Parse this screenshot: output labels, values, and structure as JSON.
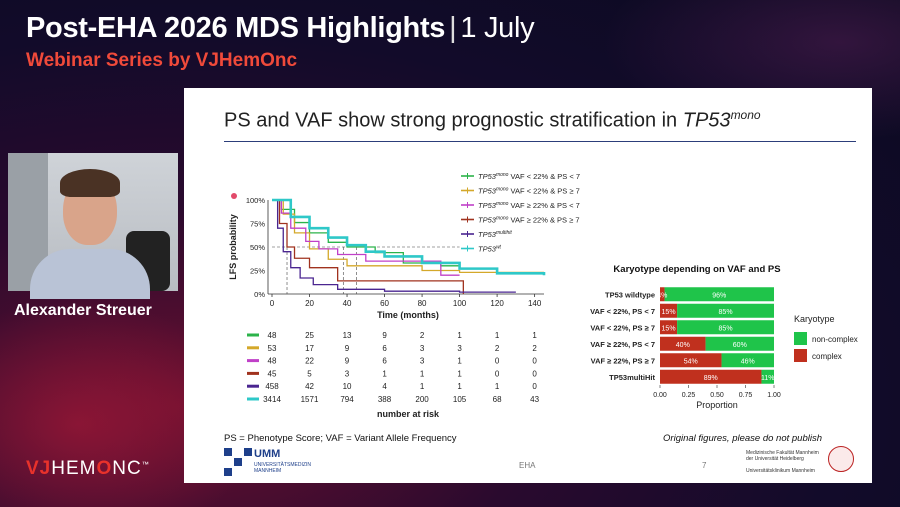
{
  "header": {
    "title": "Post-EHA 2026 MDS Highlights",
    "separator": "|",
    "date": "1 July",
    "subtitle": "Webinar Series by VJHemOnc"
  },
  "speaker": {
    "name": "Alexander Streuer"
  },
  "logo": {
    "vj": "VJ",
    "hem": "HEM",
    "o": "O",
    "nc": "NC",
    "tm": "™"
  },
  "slide": {
    "title_main": "PS and VAF show strong prognostic stratification in ",
    "title_gene": "TP53",
    "title_sup": "mono",
    "footnote": "PS = Phenotype Score; VAF = Variant Allele Frequency",
    "disclaimer": "Original figures, please do not publish",
    "umm_name": "UMM",
    "umm_sub1": "UNIVERSITÄTSMEDIZIN",
    "umm_sub2": "MANNHEIM",
    "conference": "EHA",
    "page_number": "7",
    "heidelberg_line1": "Medizinische Fakultät Mannheim",
    "heidelberg_line2": "der Universität Heidelberg",
    "heidelberg_line3": "Universitätsklinikum Mannheim"
  },
  "chart_data": [
    {
      "type": "line",
      "ylabel": "LFS probability",
      "xlabel": "Time (months)",
      "xlim": [
        0,
        145
      ],
      "ylim": [
        0,
        1
      ],
      "x_ticks": [
        "0",
        "20",
        "40",
        "60",
        "80",
        "100",
        "120",
        "140"
      ],
      "y_ticks": [
        "0%",
        "25%",
        "50%",
        "75%",
        "100%"
      ],
      "legend_position": "top-right",
      "series": [
        {
          "legend_gene": "TP53",
          "legend_sup": "mono",
          "legend_rest": " VAF < 22% & PS < 7",
          "color": "#2bb34a",
          "points": [
            [
              0,
              1
            ],
            [
              5,
              0.9
            ],
            [
              12,
              0.76
            ],
            [
              20,
              0.65
            ],
            [
              30,
              0.55
            ],
            [
              40,
              0.5
            ],
            [
              55,
              0.44
            ],
            [
              70,
              0.33
            ],
            [
              90,
              0.3
            ],
            [
              100,
              0.3
            ]
          ]
        },
        {
          "legend_gene": "TP53",
          "legend_sup": "mono",
          "legend_rest": " VAF < 22% & PS ≥ 7",
          "color": "#d4a82a",
          "points": [
            [
              0,
              1
            ],
            [
              6,
              0.85
            ],
            [
              12,
              0.65
            ],
            [
              20,
              0.48
            ],
            [
              30,
              0.37
            ],
            [
              40,
              0.3
            ],
            [
              60,
              0.3
            ],
            [
              80,
              0.25
            ],
            [
              100,
              0.23
            ],
            [
              145,
              0.23
            ]
          ]
        },
        {
          "legend_gene": "TP53",
          "legend_sup": "mono",
          "legend_rest": " VAF ≥ 22% & PS < 7",
          "color": "#c040c8",
          "points": [
            [
              0,
              1
            ],
            [
              5,
              0.86
            ],
            [
              10,
              0.7
            ],
            [
              18,
              0.56
            ],
            [
              25,
              0.48
            ],
            [
              35,
              0.42
            ],
            [
              50,
              0.35
            ],
            [
              62,
              0.35
            ],
            [
              88,
              0.35
            ],
            [
              90,
              0.2
            ],
            [
              100,
              0.2
            ]
          ]
        },
        {
          "legend_gene": "TP53",
          "legend_sup": "mono",
          "legend_rest": " VAF ≥ 22% & PS ≥ 7",
          "color": "#a0321e",
          "points": [
            [
              0,
              1
            ],
            [
              4,
              0.75
            ],
            [
              8,
              0.5
            ],
            [
              12,
              0.38
            ],
            [
              20,
              0.28
            ],
            [
              35,
              0.14
            ],
            [
              60,
              0.14
            ],
            [
              75,
              0.14
            ],
            [
              100,
              0.14
            ],
            [
              102,
              0
            ]
          ]
        },
        {
          "legend_gene": "TP53",
          "legend_sup": "multihit",
          "legend_rest": "",
          "color": "#4a2590",
          "points": [
            [
              0,
              1
            ],
            [
              3,
              0.7
            ],
            [
              6,
              0.45
            ],
            [
              10,
              0.28
            ],
            [
              15,
              0.17
            ],
            [
              22,
              0.1
            ],
            [
              35,
              0.05
            ],
            [
              60,
              0.03
            ],
            [
              100,
              0.02
            ],
            [
              130,
              0.02
            ]
          ]
        },
        {
          "legend_gene": "TP53",
          "legend_sup": "wt",
          "legend_rest": "",
          "color": "#2ec8c8",
          "points": [
            [
              0,
              1
            ],
            [
              10,
              0.82
            ],
            [
              20,
              0.7
            ],
            [
              30,
              0.6
            ],
            [
              40,
              0.52
            ],
            [
              50,
              0.45
            ],
            [
              60,
              0.4
            ],
            [
              80,
              0.33
            ],
            [
              100,
              0.27
            ],
            [
              120,
              0.22
            ],
            [
              145,
              0.2
            ]
          ]
        }
      ],
      "risk_table": {
        "title": "number at risk",
        "rows": [
          {
            "color": "#2bb34a",
            "values": [
              "48",
              "25",
              "13",
              "9",
              "2",
              "1",
              "1",
              "1"
            ]
          },
          {
            "color": "#d4a82a",
            "values": [
              "53",
              "17",
              "9",
              "6",
              "3",
              "3",
              "2",
              "2"
            ]
          },
          {
            "color": "#c040c8",
            "values": [
              "48",
              "22",
              "9",
              "6",
              "3",
              "1",
              "0",
              "0"
            ]
          },
          {
            "color": "#a0321e",
            "values": [
              "45",
              "5",
              "3",
              "1",
              "1",
              "1",
              "0",
              "0"
            ]
          },
          {
            "color": "#4a2590",
            "values": [
              "458",
              "42",
              "10",
              "4",
              "1",
              "1",
              "1",
              "0"
            ]
          },
          {
            "color": "#2ec8c8",
            "values": [
              "3414",
              "1571",
              "794",
              "388",
              "200",
              "105",
              "68",
              "43"
            ]
          }
        ]
      }
    },
    {
      "type": "bar",
      "orientation": "horizontal-stacked",
      "title": "Karyotype depending on VAF and PS",
      "xlabel": "Proportion",
      "xlim": [
        0,
        1
      ],
      "x_ticks": [
        "0.00",
        "0.25",
        "0.50",
        "0.75",
        "1.00"
      ],
      "categories": [
        "TP53 wildtype",
        "VAF < 22%, PS < 7",
        "VAF < 22%, PS ≥ 7",
        "VAF ≥ 22%, PS < 7",
        "VAF ≥ 22%, PS ≥ 7",
        "TP53multiHit"
      ],
      "series": [
        {
          "name": "complex",
          "color": "#c0301e",
          "values": [
            0.04,
            0.15,
            0.15,
            0.4,
            0.54,
            0.89
          ],
          "labels": [
            "4%",
            "15%",
            "15%",
            "40%",
            "54%",
            "89%"
          ]
        },
        {
          "name": "non-complex",
          "color": "#1fc44a",
          "values": [
            0.96,
            0.85,
            0.85,
            0.6,
            0.46,
            0.11
          ],
          "labels": [
            "96%",
            "85%",
            "85%",
            "60%",
            "46%",
            "11%"
          ]
        }
      ],
      "legend_title": "Karyotype",
      "legend_order": [
        "non-complex",
        "complex"
      ],
      "legend_position": "right"
    }
  ]
}
